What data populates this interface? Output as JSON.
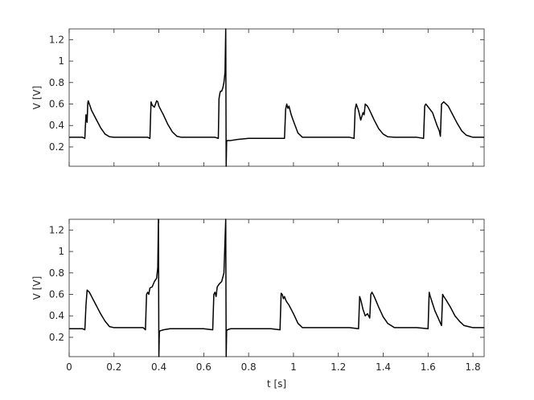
{
  "chart_data": [
    {
      "type": "line",
      "title": "",
      "xlabel": "",
      "ylabel": "V [V]",
      "xlim": [
        0,
        1.85
      ],
      "ylim": [
        0.02,
        1.3
      ],
      "yticks": [
        0.2,
        0.4,
        0.6,
        0.8,
        1,
        1.2
      ],
      "ytick_labels": [
        "0.2",
        "0.4",
        "0.6",
        "0.8",
        "1",
        "1.2"
      ],
      "grid": false,
      "series": [
        {
          "color": "#000000",
          "x": [
            0,
            0.02,
            0.04,
            0.06,
            0.07,
            0.072,
            0.075,
            0.08,
            0.083,
            0.085,
            0.09,
            0.1,
            0.12,
            0.14,
            0.16,
            0.18,
            0.2,
            0.22,
            0.25,
            0.3,
            0.35,
            0.36,
            0.365,
            0.37,
            0.38,
            0.385,
            0.39,
            0.395,
            0.4,
            0.42,
            0.44,
            0.46,
            0.48,
            0.5,
            0.55,
            0.6,
            0.65,
            0.665,
            0.668,
            0.672,
            0.675,
            0.68,
            0.685,
            0.69,
            0.695,
            0.698,
            0.7,
            0.702,
            0.705,
            0.72,
            0.75,
            0.8,
            0.85,
            0.9,
            0.95,
            0.96,
            0.965,
            0.97,
            0.975,
            0.98,
            0.985,
            0.99,
            1.0,
            1.02,
            1.04,
            1.06,
            1.08,
            1.1,
            1.15,
            1.2,
            1.25,
            1.27,
            1.275,
            1.28,
            1.29,
            1.3,
            1.31,
            1.315,
            1.32,
            1.33,
            1.34,
            1.36,
            1.38,
            1.4,
            1.42,
            1.45,
            1.5,
            1.55,
            1.58,
            1.585,
            1.59,
            1.62,
            1.64,
            1.65,
            1.655,
            1.66,
            1.67,
            1.69,
            1.71,
            1.73,
            1.75,
            1.77,
            1.8,
            1.85
          ],
          "y": [
            0.29,
            0.29,
            0.29,
            0.29,
            0.28,
            0.38,
            0.5,
            0.43,
            0.61,
            0.63,
            0.6,
            0.54,
            0.46,
            0.38,
            0.32,
            0.295,
            0.29,
            0.29,
            0.29,
            0.29,
            0.29,
            0.28,
            0.62,
            0.59,
            0.57,
            0.6,
            0.63,
            0.62,
            0.58,
            0.5,
            0.41,
            0.34,
            0.3,
            0.29,
            0.29,
            0.29,
            0.29,
            0.28,
            0.65,
            0.7,
            0.72,
            0.72,
            0.75,
            0.8,
            0.9,
            1.3,
            0.02,
            0.25,
            0.26,
            0.26,
            0.27,
            0.28,
            0.28,
            0.28,
            0.28,
            0.28,
            0.55,
            0.6,
            0.56,
            0.58,
            0.54,
            0.5,
            0.44,
            0.33,
            0.29,
            0.29,
            0.29,
            0.29,
            0.29,
            0.29,
            0.29,
            0.28,
            0.55,
            0.6,
            0.54,
            0.45,
            0.52,
            0.5,
            0.6,
            0.58,
            0.54,
            0.45,
            0.37,
            0.32,
            0.295,
            0.29,
            0.29,
            0.29,
            0.28,
            0.58,
            0.6,
            0.52,
            0.4,
            0.35,
            0.3,
            0.6,
            0.62,
            0.58,
            0.5,
            0.42,
            0.35,
            0.31,
            0.29,
            0.29
          ]
        }
      ]
    },
    {
      "type": "line",
      "title": "",
      "xlabel": "t [s]",
      "ylabel": "V [V]",
      "xlim": [
        0,
        1.85
      ],
      "ylim": [
        0.02,
        1.3
      ],
      "xticks": [
        0,
        0.2,
        0.4,
        0.6,
        0.8,
        1,
        1.2,
        1.4,
        1.6,
        1.8
      ],
      "xtick_labels": [
        "0",
        "0.2",
        "0.4",
        "0.6",
        "0.8",
        "1",
        "1.2",
        "1.4",
        "1.6",
        "1.8"
      ],
      "yticks": [
        0.2,
        0.4,
        0.6,
        0.8,
        1,
        1.2
      ],
      "ytick_labels": [
        "0.2",
        "0.4",
        "0.6",
        "0.8",
        "1",
        "1.2"
      ],
      "grid": false,
      "series": [
        {
          "color": "#000000",
          "x": [
            0,
            0.02,
            0.04,
            0.06,
            0.07,
            0.075,
            0.08,
            0.09,
            0.1,
            0.12,
            0.14,
            0.16,
            0.18,
            0.2,
            0.25,
            0.3,
            0.33,
            0.34,
            0.345,
            0.35,
            0.355,
            0.36,
            0.37,
            0.38,
            0.39,
            0.395,
            0.398,
            0.4,
            0.402,
            0.405,
            0.42,
            0.45,
            0.5,
            0.55,
            0.6,
            0.64,
            0.645,
            0.65,
            0.655,
            0.66,
            0.67,
            0.68,
            0.69,
            0.698,
            0.7,
            0.702,
            0.705,
            0.72,
            0.75,
            0.8,
            0.85,
            0.9,
            0.94,
            0.945,
            0.95,
            0.955,
            0.96,
            0.965,
            0.97,
            0.98,
            1.0,
            1.02,
            1.04,
            1.06,
            1.08,
            1.1,
            1.15,
            1.2,
            1.25,
            1.29,
            1.295,
            1.3,
            1.31,
            1.32,
            1.33,
            1.34,
            1.345,
            1.35,
            1.36,
            1.38,
            1.4,
            1.42,
            1.45,
            1.5,
            1.55,
            1.6,
            1.605,
            1.61,
            1.63,
            1.66,
            1.665,
            1.67,
            1.68,
            1.7,
            1.72,
            1.74,
            1.76,
            1.78,
            1.8,
            1.85
          ],
          "y": [
            0.28,
            0.28,
            0.28,
            0.28,
            0.27,
            0.5,
            0.64,
            0.62,
            0.58,
            0.5,
            0.42,
            0.35,
            0.3,
            0.29,
            0.29,
            0.29,
            0.29,
            0.27,
            0.6,
            0.62,
            0.6,
            0.66,
            0.67,
            0.72,
            0.75,
            0.85,
            1.3,
            0.02,
            0.25,
            0.26,
            0.27,
            0.28,
            0.28,
            0.28,
            0.28,
            0.27,
            0.6,
            0.62,
            0.58,
            0.67,
            0.7,
            0.72,
            0.8,
            1.3,
            0.02,
            0.26,
            0.27,
            0.28,
            0.28,
            0.28,
            0.28,
            0.28,
            0.27,
            0.61,
            0.6,
            0.56,
            0.58,
            0.55,
            0.53,
            0.5,
            0.42,
            0.33,
            0.29,
            0.29,
            0.29,
            0.29,
            0.29,
            0.29,
            0.29,
            0.28,
            0.58,
            0.55,
            0.46,
            0.4,
            0.42,
            0.38,
            0.6,
            0.62,
            0.58,
            0.48,
            0.39,
            0.33,
            0.29,
            0.29,
            0.29,
            0.28,
            0.62,
            0.58,
            0.45,
            0.31,
            0.6,
            0.58,
            0.55,
            0.48,
            0.4,
            0.35,
            0.31,
            0.3,
            0.29,
            0.29
          ]
        }
      ]
    }
  ]
}
